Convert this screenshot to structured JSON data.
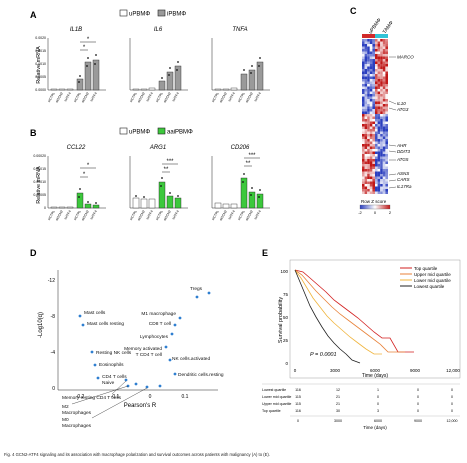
{
  "panel_labels": [
    "A",
    "B",
    "C",
    "D",
    "E"
  ],
  "legends": {
    "a": [
      "uPBMΦ",
      "iPBMΦ"
    ],
    "b": [
      "uPBMΦ",
      "aaiPBMΦ"
    ]
  },
  "panel_a": {
    "ylabel": "Relative mRNA",
    "ticks": [
      "0.0020",
      "0.0015",
      "0.0010",
      "0.0005",
      "0.0000"
    ],
    "x_labels": [
      "siCTRL",
      "siGCN2",
      "siATF4",
      "siCTRL",
      "siGCN2",
      "siATF4"
    ],
    "sig": [
      "*",
      "*"
    ]
  },
  "panel_b": {
    "ylabel": "Relative mRNA",
    "ticks": [
      "0.00020",
      "0.00015",
      "0.00010",
      "0.00005",
      "0"
    ],
    "x_labels": [
      "siCTRL",
      "siGCN2",
      "siATF4",
      "siCTRL",
      "siGCN2",
      "siATF4"
    ],
    "sig_ccl22": [
      "*",
      "*"
    ],
    "sig_arg1": [
      "***",
      "**"
    ],
    "sig_cd206": [
      "***",
      "**"
    ]
  },
  "heatmap": {
    "col_headers": [
      "uPBMΦ",
      "TAMΦ"
    ],
    "gene_labels": [
      "MARCO",
      "IL10",
      "ATG3",
      "AHR",
      "DDIT3",
      "ATG5",
      "ASNS",
      "CARS",
      "IL17Ra"
    ],
    "legend_title": "Row Z score",
    "legend_ticks": [
      "-2",
      "0",
      "2"
    ],
    "colors": {
      "low": "#2b3fbf",
      "mid": "#ffffff",
      "high": "#c01818"
    }
  },
  "scatter_d": {
    "ylabel": "-Log10(q)",
    "xlabel": "Pearson's R",
    "y_ticks": [
      "-12",
      "-8",
      "-4",
      "0"
    ],
    "x_ticks": [
      "-0.2",
      "-0.1",
      "0",
      "0.1",
      "0.2"
    ],
    "labels": {
      "treg": "Tregs",
      "mast": "Mast cells",
      "mast_resting": "Mast cells resting",
      "m1": "M1 macrophage",
      "cd8": "CD8 T cell",
      "lymph": "Lymphocytes",
      "nk_rest": "Resting NK cells",
      "eos": "Eosinophils",
      "cd4": "CD4 T cells",
      "naive": "Naive",
      "mem_act": "Memory activated",
      "tcd4": "T CD4 T cell",
      "nk_act": "NK cells.activated",
      "mem_rest": "Memory resting CD4 T cells",
      "dend": "Dendritic cells.resting",
      "m2": "M2",
      "macro1": "Macrophages",
      "m0": "M0",
      "macro2": "Macrophages"
    }
  },
  "survival_e": {
    "ylabel": "Survival probability",
    "xlabel": "Time (days)",
    "y_ticks": [
      "100",
      "75",
      "50",
      "25",
      "0"
    ],
    "x_ticks": [
      "0",
      "3000",
      "6000",
      "9000",
      "12,000"
    ],
    "pvalue": "P = 0.0001",
    "legend": [
      "Top quartile",
      "Upper mid quartile",
      "Lower mid quartile",
      "Lowest quartile"
    ],
    "colors": [
      "#d21f1f",
      "#e8823a",
      "#f0b43c",
      "#222222"
    ],
    "risk_rows": [
      {
        "name": "Lowest quartile",
        "values": [
          "116",
          "12",
          "1",
          "0",
          "0"
        ]
      },
      {
        "name": "Lower mid quartile",
        "values": [
          "115",
          "21",
          "0",
          "0",
          "0"
        ]
      },
      {
        "name": "Upper mid quartile",
        "values": [
          "115",
          "21",
          "0",
          "0",
          "0"
        ]
      },
      {
        "name": "Top quartile",
        "values": [
          "116",
          "30",
          "3",
          "0",
          "0"
        ]
      }
    ],
    "risk_xticks": [
      "0",
      "3000",
      "6000",
      "9000",
      "12,000"
    ],
    "risk_xlabel": "Time (days)"
  },
  "caption": "Fig. 4 GCN2-ATF4 signaling and its association with macrophage polarization and survival outcomes across patients with malignancy (A) to (E)."
}
